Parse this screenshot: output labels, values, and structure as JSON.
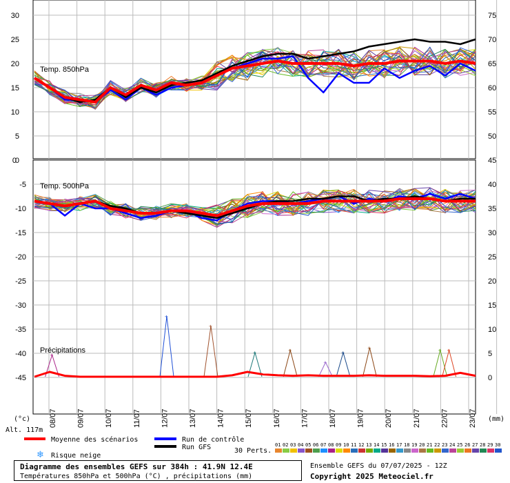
{
  "chart_data": [
    {
      "type": "line",
      "panel_label": "Temp. 850hPa",
      "yticks_left": [
        "30",
        "25",
        "20",
        "15",
        "10",
        "5",
        "0"
      ],
      "yticks_right": [
        "75",
        "70",
        "65",
        "60",
        "55",
        "50"
      ],
      "ylim": [
        0,
        32
      ],
      "mean_series_name": "Moyenne des scénarios",
      "mean": [
        17,
        15,
        13,
        12.5,
        12,
        15,
        13.5,
        15.5,
        14.5,
        16,
        15.5,
        16,
        17.5,
        19,
        19.5,
        20,
        20.5,
        20,
        20,
        20,
        20,
        19.5,
        20,
        20,
        20.5,
        20.5,
        20.5,
        20,
        20.5,
        20
      ],
      "control": [
        17,
        15,
        12.5,
        12.5,
        12,
        14.5,
        12.5,
        15,
        13.5,
        15,
        15.5,
        16,
        17.5,
        19,
        20,
        21,
        21,
        21.5,
        17,
        14,
        18,
        16,
        16,
        19,
        17,
        18.5,
        19.5,
        17.5,
        20,
        18.5
      ],
      "gfs": [
        17,
        15,
        13,
        12,
        12.5,
        15,
        13,
        15,
        14,
        15.5,
        16,
        16.5,
        18,
        19.5,
        20.5,
        21.5,
        22,
        22,
        21,
        21.5,
        22,
        22.5,
        23.5,
        24,
        24.5,
        25,
        24.5,
        24.5,
        24,
        25
      ]
    },
    {
      "type": "line",
      "panel_label": "Temp. 500hPa",
      "yticks_left": [
        "-5",
        "-10",
        "-15",
        "-20",
        "-25",
        "-30",
        "-35",
        "-40",
        "-45"
      ],
      "yticks_right": [
        "45",
        "40",
        "35",
        "30",
        "25",
        "20",
        "15",
        "10",
        "5",
        "0"
      ],
      "mean": [
        -8.5,
        -9,
        -9.5,
        -9,
        -8.5,
        -10,
        -10.5,
        -11,
        -11,
        -10.5,
        -10.5,
        -11,
        -11.5,
        -10.5,
        -9.5,
        -9,
        -9,
        -9,
        -9,
        -8.5,
        -8.5,
        -8.5,
        -8.5,
        -8.5,
        -8,
        -8,
        -8,
        -8.5,
        -8.5,
        -8.5
      ],
      "control": [
        -8.5,
        -9,
        -11.5,
        -9,
        -10,
        -10,
        -11,
        -12,
        -11.5,
        -10.5,
        -10.5,
        -12,
        -12.5,
        -10.5,
        -9,
        -8.5,
        -8.5,
        -9,
        -8.5,
        -8,
        -7.5,
        -9,
        -8,
        -8.5,
        -7.5,
        -8,
        -7,
        -8,
        -7,
        -8
      ],
      "gfs": [
        -8.5,
        -9,
        -9.5,
        -9,
        -8.5,
        -9.5,
        -10,
        -11,
        -11,
        -10.5,
        -11,
        -11.5,
        -12,
        -11,
        -10,
        -9,
        -8.5,
        -8.5,
        -8,
        -8,
        -7.5,
        -7.5,
        -8.5,
        -8,
        -8,
        -7.5,
        -8,
        -8.5,
        -8,
        -8
      ]
    },
    {
      "type": "line",
      "panel_label": "Précipitations",
      "mean": [
        0,
        1,
        0.2,
        0,
        0,
        0,
        0,
        0,
        0,
        0,
        0,
        0,
        0,
        0.3,
        1,
        0.5,
        0.3,
        0.2,
        0.3,
        0.2,
        0.2,
        0.2,
        0.3,
        0.2,
        0.2,
        0.2,
        0.1,
        0.2,
        0.8,
        0.2
      ],
      "peaks": [
        {
          "x": 2,
          "value": 4.5,
          "color": "#aa2288"
        },
        {
          "x": 15,
          "value": 12.5,
          "color": "#1e4fd6"
        },
        {
          "x": 20,
          "value": 10.5,
          "color": "#a0522d"
        },
        {
          "x": 25,
          "value": 5,
          "color": "#1e7a7a"
        },
        {
          "x": 29,
          "value": 5.5,
          "color": "#8b4513"
        },
        {
          "x": 33,
          "value": 3,
          "color": "#9966cc"
        },
        {
          "x": 35,
          "value": 5,
          "color": "#1a4a8a"
        },
        {
          "x": 38,
          "value": 6,
          "color": "#8b4513"
        },
        {
          "x": 46,
          "value": 5.5,
          "color": "#66aa22"
        },
        {
          "x": 47,
          "value": 5.5,
          "color": "#dd4422"
        }
      ]
    }
  ],
  "axes": {
    "x_dates": [
      "08/07",
      "09/07",
      "10/07",
      "11/07",
      "12/07",
      "13/07",
      "14/07",
      "15/07",
      "16/07",
      "17/07",
      "18/07",
      "19/07",
      "20/07",
      "21/07",
      "22/07",
      "23/07"
    ],
    "unit_left": "(°c)",
    "unit_right": "(mm)",
    "altitude": "Alt. 117m"
  },
  "legend": {
    "mean": "Moyenne des scénarios",
    "control": "Run de contrôle",
    "gfs": "Run GFS",
    "snow": "Risque neige",
    "perts": "30 Perts.",
    "member_numbers": [
      "01",
      "02",
      "03",
      "04",
      "05",
      "06",
      "07",
      "08",
      "09",
      "10",
      "11",
      "12",
      "13",
      "14",
      "15",
      "16",
      "17",
      "18",
      "19",
      "20",
      "21",
      "22",
      "23",
      "24",
      "25",
      "26",
      "27",
      "28",
      "29",
      "30"
    ]
  },
  "colors": {
    "mean": "#ff0000",
    "control": "#0000ff",
    "gfs": "#000000",
    "members": [
      "#e8862e",
      "#88cc44",
      "#f0c000",
      "#8855cc",
      "#a05020",
      "#4d9e4d",
      "#1e90ff",
      "#aa2288",
      "#dddd00",
      "#ff8800",
      "#2a6fbb",
      "#cc3333",
      "#77aa00",
      "#00aa88",
      "#553399",
      "#996600",
      "#3399cc",
      "#888888",
      "#cc66cc",
      "#aa7744",
      "#66bb22",
      "#cc9900",
      "#3366cc",
      "#bb4499",
      "#99cc33",
      "#ee7722",
      "#6644aa",
      "#228855",
      "#dd3366",
      "#2255cc"
    ]
  },
  "title": {
    "line1": "Diagramme des ensembles GEFS sur 384h : 41.9N 12.4E",
    "line2": "Températures 850hPa et 500hPa (°C) , précipitations (mm)"
  },
  "credits": {
    "run": "Ensemble GEFS du 07/07/2025 - 12Z",
    "copyright": "Copyright 2025 Meteociel.fr"
  }
}
